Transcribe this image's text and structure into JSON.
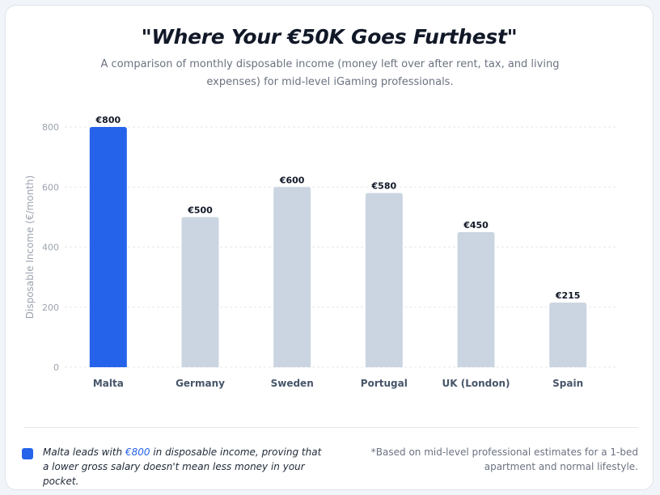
{
  "title": "\"Where Your €50K Goes Furthest\"",
  "subtitle": "A comparison of monthly disposable income (money left over after rent, tax, and living expenses) for mid-level iGaming professionals.",
  "chart_data": {
    "type": "bar",
    "categories": [
      "Malta",
      "Germany",
      "Sweden",
      "Portugal",
      "UK (London)",
      "Spain"
    ],
    "values": [
      800,
      500,
      600,
      580,
      450,
      215
    ],
    "data_labels": [
      "€800",
      "€500",
      "€600",
      "€580",
      "€450",
      "€215"
    ],
    "ylabel": "Disposable Income (€/month)",
    "ylim": [
      0,
      800
    ],
    "yticks": [
      0,
      200,
      400,
      600,
      800
    ],
    "grid": true,
    "highlight_category": "Malta",
    "colors": {
      "highlight": "#2563eb",
      "default": "#cbd5e1",
      "grid": "#e5e7eb",
      "tick": "#9ca3af",
      "category": "#475569",
      "label": "#111827"
    }
  },
  "footer": {
    "note_prefix": "Malta leads with ",
    "note_highlight": "€800",
    "note_suffix": " in disposable income, proving that a lower gross salary doesn't mean less money in your pocket.",
    "disclaimer": "*Based on mid-level professional estimates for a 1-bed apartment and normal lifestyle."
  }
}
